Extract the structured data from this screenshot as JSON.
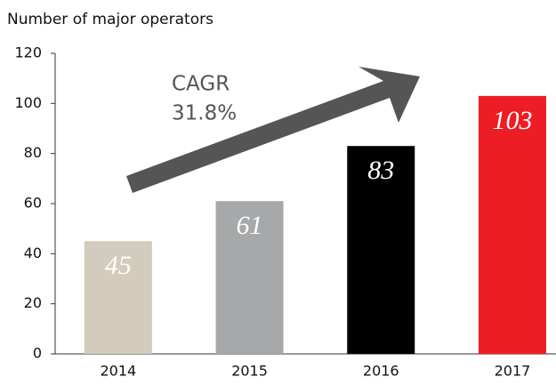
{
  "chart_data": {
    "type": "bar",
    "title": "Number of major operators",
    "categories": [
      "2014",
      "2015",
      "2016",
      "2017"
    ],
    "values": [
      45,
      61,
      83,
      103
    ],
    "colors": [
      "#d3cbbb",
      "#a6a8aa",
      "#000000",
      "#ee1c25"
    ],
    "ylim": [
      0,
      120
    ],
    "yticks": [
      0,
      20,
      40,
      60,
      80,
      100,
      120
    ],
    "grid": false,
    "annotations": [
      "CAGR",
      "31.8%"
    ]
  }
}
